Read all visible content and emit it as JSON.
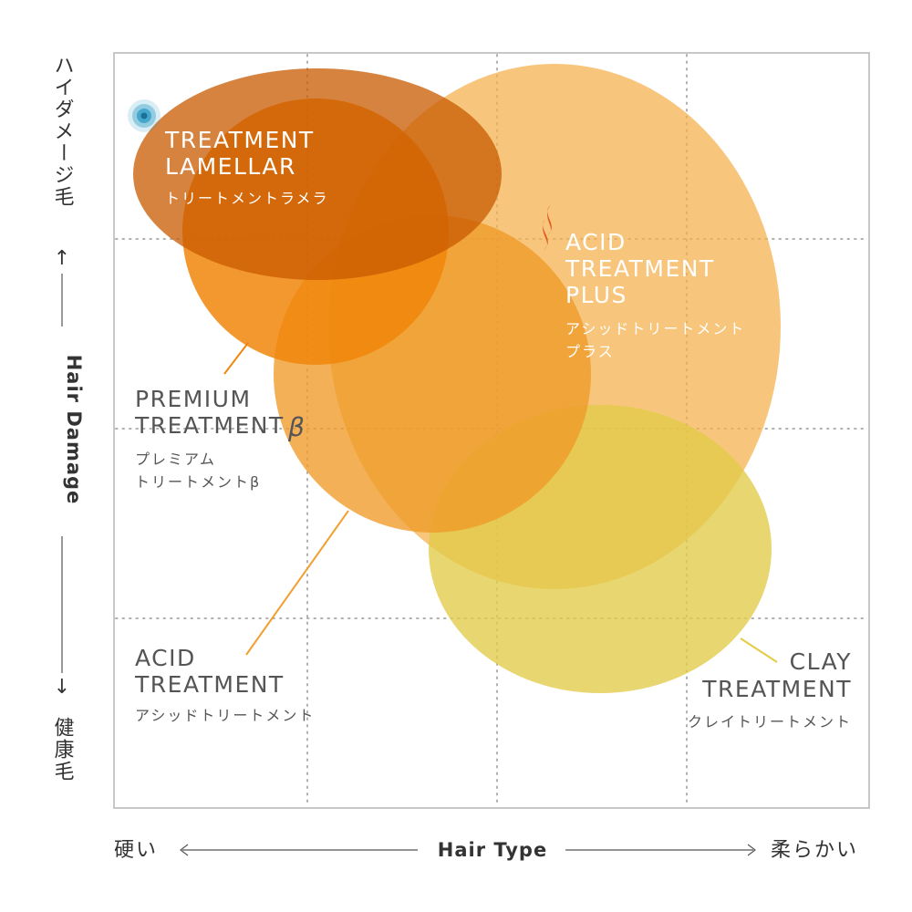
{
  "colors": {
    "frame": "#b5b5b5",
    "grid": "#b0b0b0",
    "lamellar": "#c85a00",
    "premium": "#f0860a",
    "acid": "#f09a28",
    "acid_plus": "#f4b04a",
    "clay": "#e2cb48",
    "dark_text": "#555555",
    "axis_text": "#333333",
    "marker": "#2a9bc4",
    "flame": "#e05a1e"
  },
  "y_axis": {
    "top_label": "ハイダメージ毛",
    "arrow_up": "↑",
    "title": "Hair Damage",
    "arrow_down": "↓",
    "bottom_label": "健康毛"
  },
  "x_axis": {
    "left_label": "硬い",
    "title": "Hair Type",
    "right_label": "柔らかい"
  },
  "products": {
    "lamellar": {
      "name_line1": "TREATMENT",
      "name_line2": "LAMELLAR",
      "jp": "トリートメントラメラ"
    },
    "acid_plus": {
      "name_line1": "ACID",
      "name_line2": "TREATMENT",
      "name_line3": "PLUS",
      "jp_line1": "アシッドトリートメント",
      "jp_line2": "プラス"
    },
    "premium": {
      "name_line1": "PREMIUM",
      "name_line2": "TREATMENT",
      "name_suffix": "β",
      "jp_line1": "プレミアム",
      "jp_line2": "トリートメントβ"
    },
    "acid": {
      "name_line1": "ACID",
      "name_line2": "TREATMENT",
      "jp": "アシッドトリートメント"
    },
    "clay": {
      "name_line1": "CLAY",
      "name_line2": "TREATMENT",
      "jp": "クレイトリートメント"
    }
  }
}
